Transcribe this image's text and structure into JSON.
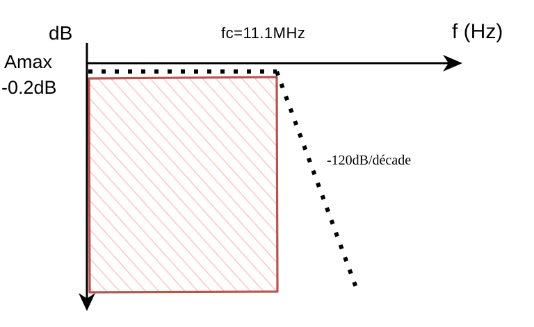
{
  "axes": {
    "y_label": "dB",
    "x_label": "f (Hz)"
  },
  "cutoff": {
    "label": "fc=11.1MHz"
  },
  "amax": {
    "label": "Amax",
    "value": "-0.2dB"
  },
  "rolloff": {
    "label": "-120dB/décade"
  },
  "colors": {
    "axis": "#000000",
    "passband_border": "#b85450",
    "passband_hatch": "#f8cecc",
    "template_dots": "#000000"
  }
}
